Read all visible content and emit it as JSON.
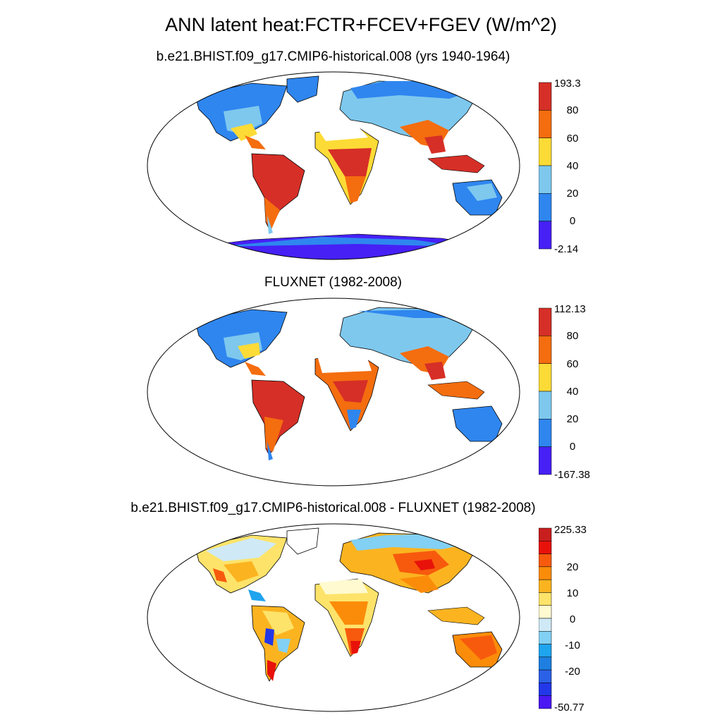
{
  "figure": {
    "title": "ANN latent heat:FCTR+FCEV+FGEV (W/m^2)"
  },
  "panels": [
    {
      "title": "b.e21.BHIST.f09_g17.CMIP6-historical.008 (yrs 1940-1964)",
      "colorbar": {
        "max_label": "193.3",
        "min_label": "-2.14",
        "tick_labels": [
          "80",
          "60",
          "40",
          "20",
          "0"
        ],
        "colors": [
          "#d62f27",
          "#f46d0f",
          "#fddb36",
          "#7ec8ee",
          "#2f86ef",
          "#4620f5"
        ]
      }
    },
    {
      "title": "FLUXNET (1982-2008)",
      "colorbar": {
        "max_label": "112.13",
        "min_label": "-167.38",
        "tick_labels": [
          "80",
          "60",
          "40",
          "20",
          "0"
        ],
        "colors": [
          "#d62f27",
          "#f46d0f",
          "#fddb36",
          "#7ec8ee",
          "#2f86ef",
          "#4620f5"
        ]
      }
    },
    {
      "title": "b.e21.BHIST.f09_g17.CMIP6-historical.008 - FLUXNET (1982-2008)",
      "colorbar": {
        "max_label": "225.33",
        "min_label": "-50.77",
        "tick_labels": [
          "20",
          "10",
          "0",
          "-10",
          "-20"
        ],
        "colors": [
          "#c81e1e",
          "#e8120b",
          "#f75a0d",
          "#fb8c0a",
          "#fbb420",
          "#fde36a",
          "#fffad0",
          "#cfeaf6",
          "#82d0f4",
          "#1fa4ee",
          "#1e7fe0",
          "#2b61e6",
          "#2237e8",
          "#4a18f2"
        ]
      }
    }
  ]
}
